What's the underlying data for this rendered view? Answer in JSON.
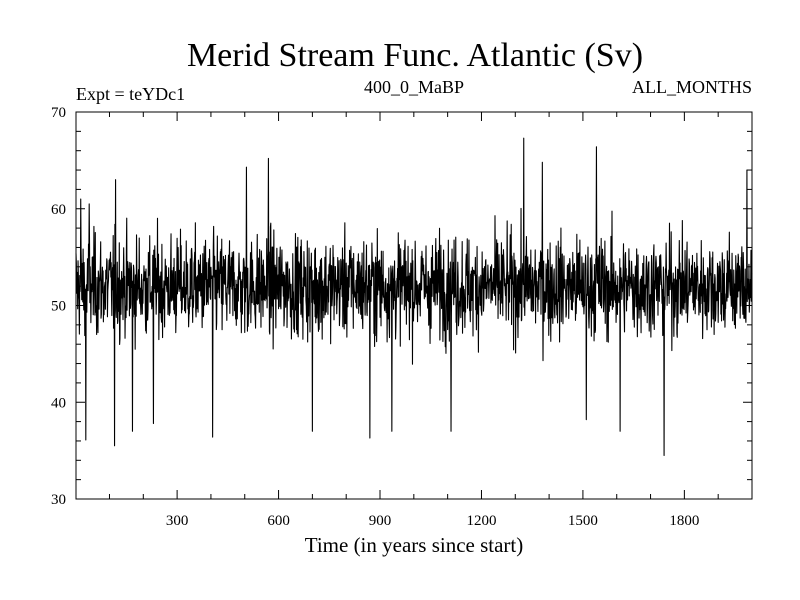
{
  "chart_data": {
    "type": "line",
    "title": "Merid Stream Func. Atlantic (Sv)",
    "subtitle_left": "Expt = teYDc1",
    "subtitle_center": "400_0_MaBP",
    "subtitle_right": "ALL_MONTHS",
    "xlabel": "Time (in years since start)",
    "ylabel": "",
    "xlim": [
      1,
      2000
    ],
    "ylim": [
      30,
      70
    ],
    "xticks": [
      300,
      600,
      900,
      1200,
      1500,
      1800
    ],
    "yticks": [
      30,
      40,
      50,
      60,
      70
    ],
    "grid": false,
    "legend": "none",
    "series": [
      {
        "line_color": "#000000",
        "summary": {
          "mean": 52,
          "min": 34.5,
          "max": 67.3
        },
        "extremes": [
          {
            "x": 15,
            "y": 61
          },
          {
            "x": 30,
            "y": 36.1
          },
          {
            "x": 40,
            "y": 60.5
          },
          {
            "x": 115,
            "y": 35.5
          },
          {
            "x": 118,
            "y": 63
          },
          {
            "x": 168,
            "y": 37
          },
          {
            "x": 230,
            "y": 37.8
          },
          {
            "x": 405,
            "y": 36.4
          },
          {
            "x": 505,
            "y": 64.3
          },
          {
            "x": 570,
            "y": 65.2
          },
          {
            "x": 700,
            "y": 37
          },
          {
            "x": 870,
            "y": 36.3
          },
          {
            "x": 935,
            "y": 37
          },
          {
            "x": 1110,
            "y": 37
          },
          {
            "x": 1325,
            "y": 67.3
          },
          {
            "x": 1380,
            "y": 64.8
          },
          {
            "x": 1510,
            "y": 38.2
          },
          {
            "x": 1540,
            "y": 66.4
          },
          {
            "x": 1610,
            "y": 37
          },
          {
            "x": 1740,
            "y": 34.5
          },
          {
            "x": 1985,
            "y": 64
          }
        ]
      }
    ]
  }
}
